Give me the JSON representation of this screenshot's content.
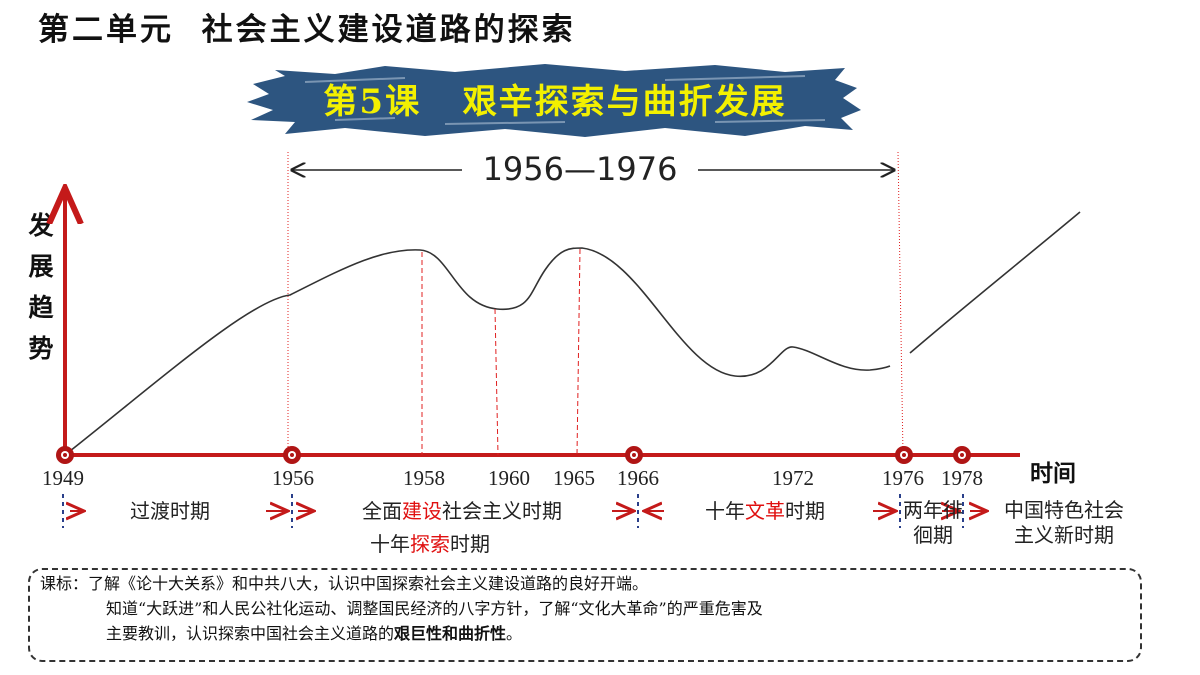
{
  "unit_title": "第二单元  社会主义建设道路的探索",
  "lesson_banner": {
    "text": "第5课   艰辛探索与曲折发展",
    "background_color": "#2d5580",
    "text_color": "#f3f000"
  },
  "axes": {
    "y_label": "发展趋势",
    "x_label": "时间",
    "axis_color": "#c41a1a"
  },
  "range_span": "1956—1976",
  "years": [
    "1949",
    "1956",
    "1958",
    "1960",
    "1965",
    "1966",
    "1972",
    "1976",
    "1978"
  ],
  "periods": {
    "transition": "过渡时期",
    "construction_pre": "全面",
    "construction_hl": "建设",
    "construction_post": "社会主义时期",
    "exploration_pre": "十年",
    "exploration_hl": "探索",
    "exploration_post": "时期",
    "culture_pre": "十年",
    "culture_hl": "文革",
    "culture_post": "时期",
    "hesitation": "两年徘徊期",
    "new_era_line1": "中国特色社会",
    "new_era_line2": "主义新时期"
  },
  "curriculum_standard": {
    "label": "课标：",
    "line1": "了解《论十大关系》和中共八大，认识中国探索社会主义建设道路的良好开端。",
    "line2": "知道“大跃进”和人民公社化运动、调整国民经济的八字方针，了解“文化大革命”的严重危害及",
    "line3_pre": "主要教训，认识探索中国社会主义道路的",
    "line3_bold": "艰巨性和曲折性",
    "line3_post": "。"
  }
}
